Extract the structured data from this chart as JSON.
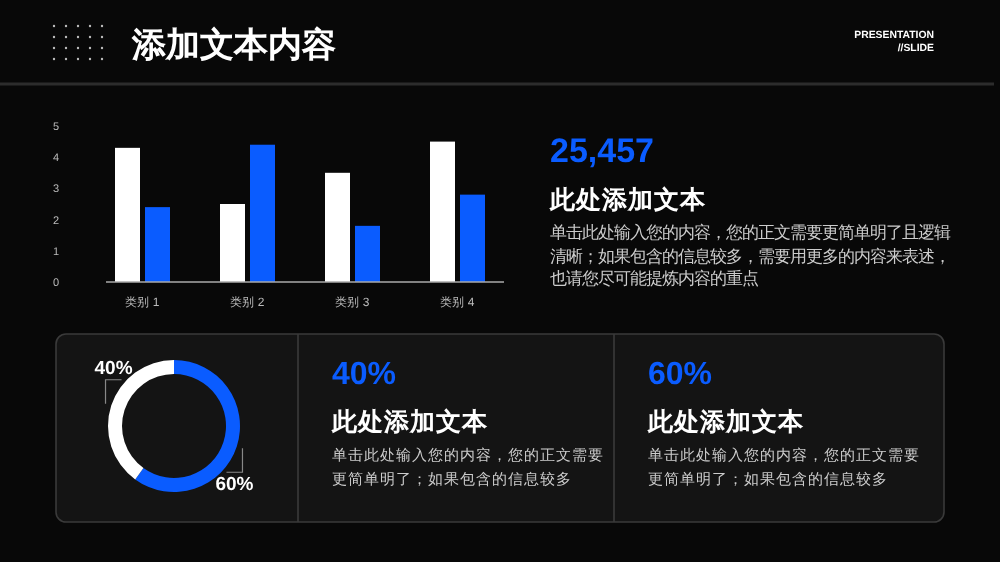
{
  "chart_data": [
    {
      "type": "bar",
      "title": "添加文本内容",
      "annotations": [
        "PRESENTATION",
        "//SLIDE"
      ],
      "categories": [
        "类别 1",
        "类别 2",
        "类别 3",
        "类别 4"
      ],
      "series": [
        {
          "color": "#ffffff",
          "values": [
            4.3,
            2.5,
            3.5,
            4.5
          ]
        },
        {
          "color": "#0a5cff",
          "values": [
            2.4,
            4.4,
            1.8,
            2.8
          ]
        }
      ],
      "ylim": [
        0,
        5
      ],
      "yticks": [
        0,
        1,
        2,
        3,
        4,
        5
      ]
    },
    {
      "type": "other",
      "title": "25,457",
      "subtitle": "此处添加文本",
      "annotations": [
        "单击此处输入您的内容，您的正文需要更简单明了且逻辑清晰；如果包含的信息较多，需要用更多的内容来表述，也请您尽可能提炼内容的重点"
      ]
    },
    {
      "type": "donut",
      "categories": [
        null,
        null
      ],
      "values": [
        60,
        40
      ],
      "colors": [
        "#0a5cff",
        "#ffffff"
      ],
      "value_labels": [
        "60%",
        "40%"
      ]
    },
    {
      "type": "other",
      "title": "40%",
      "subtitle": "此处添加文本",
      "annotations": [
        "单击此处输入您的内容，您的正文需要更简单明了；如果包含的信息较多"
      ]
    },
    {
      "type": "other",
      "title": "60%",
      "subtitle": "此处添加文本",
      "annotations": [
        "单击此处输入您的内容，您的正文需要更简单明了；如果包含的信息较多"
      ]
    }
  ]
}
